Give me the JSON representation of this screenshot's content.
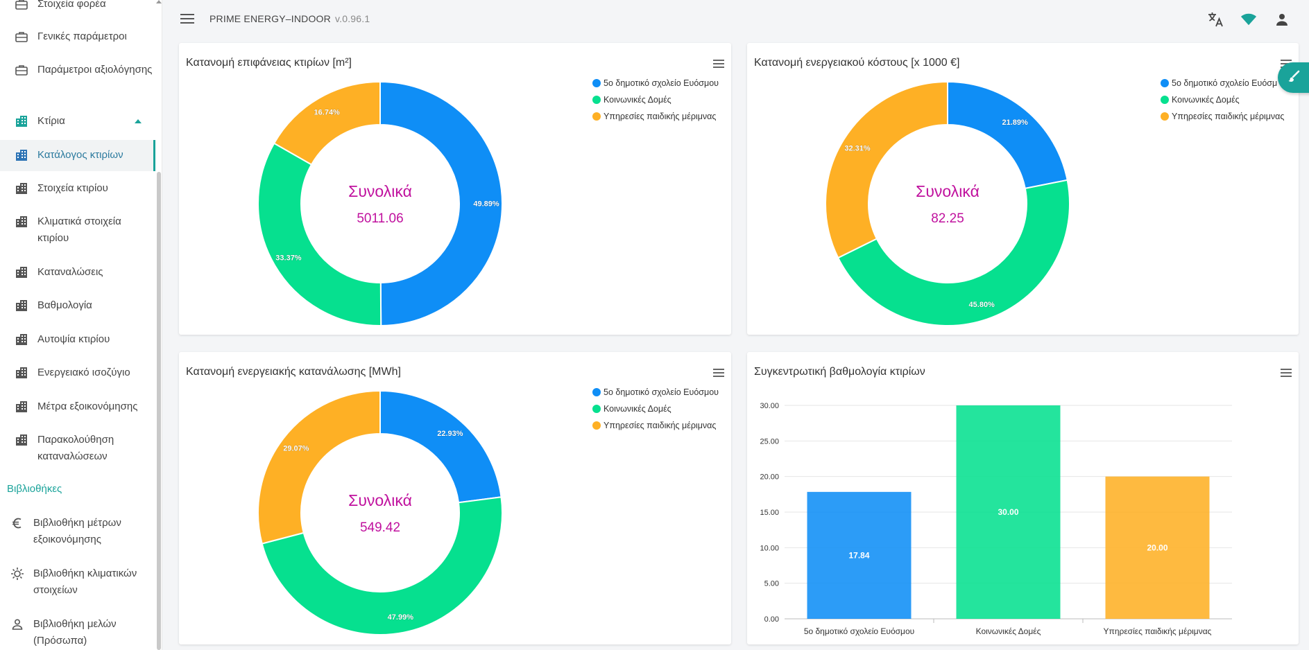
{
  "app": {
    "title": "PRIME ENERGY–INDOOR",
    "version": "v.0.96.1"
  },
  "colors": {
    "blue": "#0f8ef6",
    "green": "#06e08f",
    "orange": "#feb025",
    "center_text": "#c0119e",
    "accent": "#1aa39a"
  },
  "sidebar": {
    "items": [
      {
        "label": "Στοιχεία φορέα",
        "icon": "briefcase-icon"
      },
      {
        "label": "Γενικές παράμετροι",
        "icon": "briefcase-icon"
      },
      {
        "label": "Παράμετροι αξιολόγησης",
        "icon": "briefcase-icon"
      },
      {
        "label": "Κτίρια",
        "icon": "building-icon"
      },
      {
        "label": "Κατάλογος κτιρίων",
        "icon": "building-icon"
      },
      {
        "label": "Στοιχεία κτιρίου",
        "icon": "building-icon"
      },
      {
        "label": "Κλιματικά στοιχεία κτιρίου",
        "icon": "building-icon"
      },
      {
        "label": "Καταναλώσεις",
        "icon": "building-icon"
      },
      {
        "label": "Βαθμολογία",
        "icon": "building-icon"
      },
      {
        "label": "Αυτοψία κτιρίου",
        "icon": "building-icon"
      },
      {
        "label": "Ενεργειακό ισοζύγιο",
        "icon": "building-icon"
      },
      {
        "label": "Μέτρα εξοικονόμησης",
        "icon": "building-icon"
      },
      {
        "label": "Παρακολούθηση καταναλώσεων",
        "icon": "building-icon"
      },
      {
        "label": "Βιβλιοθήκη μέτρων εξοικονόμησης",
        "icon": "euro-icon"
      },
      {
        "label": "Βιβλιοθήκη κλιματικών στοιχείων",
        "icon": "sun-icon"
      },
      {
        "label": "Βιβλιοθήκη μελών (Πρόσωπα)",
        "icon": "person-icon"
      }
    ],
    "section_libraries": "Βιβλιοθήκες"
  },
  "legend": [
    "5ο δημοτικό σχολείο Ευόσμου",
    "Κοινωνικές Δομές",
    "Υπηρεσίες παιδικής μέριμνας"
  ],
  "legend_short": [
    "5ο δημοτικό σχολείο Ευόσμ",
    "Κοινωνικές Δομές",
    "Υπηρεσίες παιδικής μέριμνας"
  ],
  "chart_data": [
    {
      "type": "pie",
      "title": "Κατανομή επιφάνειας κτιρίων [m²]",
      "center_label": "Συνολικά",
      "center_value": "5011.06",
      "categories": [
        "5ο δημοτικό σχολείο Ευόσμου",
        "Κοινωνικές Δομές",
        "Υπηρεσίες παιδικής μέριμνας"
      ],
      "values": [
        49.89,
        33.37,
        16.74
      ],
      "labels": [
        "49.89%",
        "33.37%",
        "16.74%"
      ]
    },
    {
      "type": "pie",
      "title": "Κατανομή ενεργειακού κόστους [x 1000 €]",
      "center_label": "Συνολικά",
      "center_value": "82.25",
      "categories": [
        "5ο δημοτικό σχολείο Ευόσμου",
        "Κοινωνικές Δομές",
        "Υπηρεσίες παιδικής μέριμνας"
      ],
      "values": [
        21.89,
        45.8,
        32.31
      ],
      "labels": [
        "21.89%",
        "45.80%",
        "32.31%"
      ]
    },
    {
      "type": "pie",
      "title": "Κατανομή ενεργειακής κατανάλωσης [MWh]",
      "center_label": "Συνολικά",
      "center_value": "549.42",
      "categories": [
        "5ο δημοτικό σχολείο Ευόσμου",
        "Κοινωνικές Δομές",
        "Υπηρεσίες παιδικής μέριμνας"
      ],
      "values": [
        22.93,
        47.99,
        29.07
      ],
      "labels": [
        "22.93%",
        "47.99%",
        "29.07%"
      ]
    },
    {
      "type": "bar",
      "title": "Συγκεντρωτική βαθμολογία κτιρίων",
      "categories": [
        "5ο δημοτικό σχολείο Ευόσμου",
        "Κοινωνικές Δομές",
        "Υπηρεσίες παιδικής μέριμνας"
      ],
      "values": [
        17.84,
        30.0,
        20.0
      ],
      "labels": [
        "17.84",
        "30.00",
        "20.00"
      ],
      "yticks": [
        "0.00",
        "5.00",
        "10.00",
        "15.00",
        "20.00",
        "25.00",
        "30.00"
      ],
      "ylim": [
        0,
        30
      ]
    }
  ]
}
